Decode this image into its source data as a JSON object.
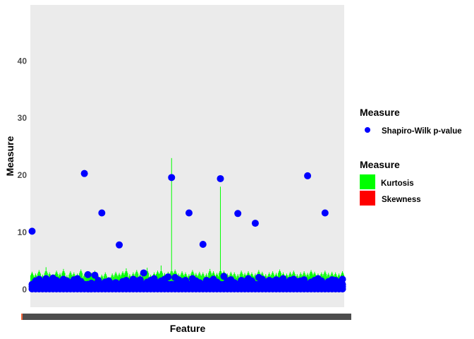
{
  "chart_data": {
    "type": "bar+scatter",
    "xlabel": "Feature",
    "ylabel": "Measure",
    "ylim": [
      -3.1,
      49.8
    ],
    "yticks": [
      0,
      10,
      20,
      30,
      40
    ],
    "grid": false,
    "panel_background": "#ebebeb",
    "legend_position": "right",
    "legends": [
      {
        "title": "Measure",
        "entries": [
          {
            "label": "Shapiro-Wilk p-value",
            "shape": "point",
            "color": "#0000ff"
          }
        ]
      },
      {
        "title": "Measure",
        "entries": [
          {
            "label": "Kurtosis",
            "shape": "box",
            "color": "#00ff00"
          },
          {
            "label": "Skewness",
            "shape": "box",
            "color": "#ff0000"
          }
        ]
      }
    ],
    "series": [
      {
        "name": "Kurtosis",
        "kind": "bar",
        "color": "#00ff00",
        "values": [
          3.1,
          2.8,
          3.4,
          2.6,
          3.9,
          3.0,
          2.7,
          3.3,
          2.9,
          3.6,
          2.5,
          3.2,
          3.0,
          2.8,
          3.5,
          2.7,
          3.1,
          2.9,
          3.3,
          2.4,
          2.6,
          3.0,
          2.2,
          2.8,
          3.1,
          2.9,
          3.2,
          3.7,
          2.7,
          3.0,
          3.4,
          2.8,
          3.1,
          3.8,
          2.6,
          3.0,
          3.3,
          4.2,
          2.9,
          3.1,
          23.0,
          3.5,
          2.8,
          3.2,
          3.0,
          2.7,
          3.4,
          2.9,
          3.1,
          3.0,
          2.8,
          3.6,
          3.2,
          2.9,
          18.0,
          3.3,
          2.8,
          3.1,
          3.0,
          2.7,
          3.3,
          2.9,
          3.2,
          3.0,
          2.8,
          3.4,
          3.1,
          2.7,
          3.0,
          3.2,
          2.9,
          3.5,
          3.0,
          2.8,
          3.1,
          3.3,
          2.7,
          3.0,
          3.2,
          2.9,
          3.4,
          3.1,
          2.8,
          3.0,
          3.3,
          2.9,
          3.1,
          3.0,
          2.8,
          3.2
        ]
      },
      {
        "name": "Skewness",
        "kind": "bar",
        "color": "#ff0000",
        "values": []
      },
      {
        "name": "Shapiro-Wilk p-value",
        "kind": "point",
        "color": "#0000ff",
        "values": [
          10.2,
          1.5,
          1.8,
          1.2,
          1.9,
          1.4,
          2.0,
          1.6,
          1.3,
          1.8,
          1.5,
          1.2,
          1.7,
          1.9,
          1.4,
          20.3,
          2.6,
          1.1,
          2.5,
          1.6,
          13.4,
          1.3,
          1.5,
          1.0,
          1.2,
          7.8,
          1.4,
          1.6,
          1.1,
          1.8,
          1.5,
          1.7,
          2.9,
          1.3,
          1.6,
          1.9,
          1.2,
          1.5,
          1.8,
          2.2,
          19.6,
          2.1,
          1.7,
          1.4,
          1.6,
          13.4,
          1.9,
          1.5,
          1.2,
          7.9,
          1.6,
          1.4,
          1.8,
          1.3,
          19.4,
          2.3,
          1.5,
          1.7,
          1.2,
          13.3,
          1.6,
          1.4,
          1.9,
          1.5,
          11.6,
          2.1,
          1.8,
          1.3,
          1.6,
          1.4,
          1.7,
          1.5,
          1.9,
          1.2,
          1.6,
          1.8,
          1.4,
          1.5,
          1.7,
          19.9,
          1.3,
          1.6,
          1.9,
          1.5,
          13.4,
          1.4,
          1.7,
          1.6,
          1.3,
          1.8
        ]
      }
    ]
  }
}
